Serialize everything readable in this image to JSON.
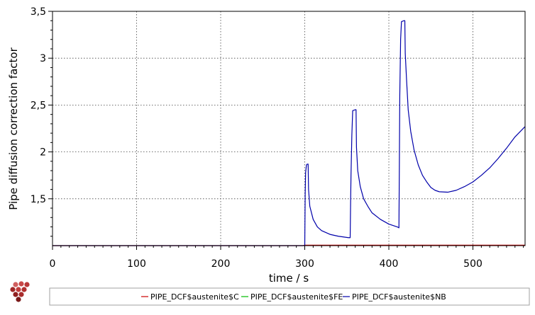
{
  "chart_data": {
    "type": "line",
    "title": "",
    "xlabel": "time / s",
    "ylabel": "Pipe diffusion correction factor",
    "xlim": [
      0,
      562
    ],
    "ylim": [
      1.0,
      3.5
    ],
    "x_ticks": [
      0,
      100,
      200,
      300,
      400,
      500
    ],
    "x_tick_labels": [
      "0",
      "100",
      "200",
      "300",
      "400",
      "500"
    ],
    "y_ticks": [
      1.5,
      2.0,
      2.5,
      3.0,
      3.5
    ],
    "y_tick_labels": [
      "1,5",
      "2",
      "2,5",
      "3",
      "3,5"
    ],
    "grid": true,
    "legend_position": "bottom",
    "series": [
      {
        "name": "PIPE_DCF$austenite$C",
        "color": "#cc0000",
        "points": [
          [
            0,
            1.0
          ],
          [
            298,
            1.0
          ],
          [
            300,
            1.005
          ],
          [
            562,
            1.005
          ]
        ]
      },
      {
        "name": "PIPE_DCF$austenite$FE",
        "color": "#00bb00",
        "points": []
      },
      {
        "name": "PIPE_DCF$austenite$NB",
        "color": "#0000aa",
        "points": [
          [
            0,
            1.0
          ],
          [
            300,
            1.0
          ],
          [
            300.5,
            1.55
          ],
          [
            301,
            1.78
          ],
          [
            302,
            1.86
          ],
          [
            303,
            1.87
          ],
          [
            304,
            1.87
          ],
          [
            304.5,
            1.6
          ],
          [
            306,
            1.42
          ],
          [
            310,
            1.28
          ],
          [
            315,
            1.2
          ],
          [
            320,
            1.16
          ],
          [
            330,
            1.12
          ],
          [
            340,
            1.1
          ],
          [
            352,
            1.085
          ],
          [
            354,
            1.085
          ],
          [
            354.5,
            1.44
          ],
          [
            355,
            1.75
          ],
          [
            356,
            2.18
          ],
          [
            357,
            2.44
          ],
          [
            360,
            2.45
          ],
          [
            361,
            2.45
          ],
          [
            361.5,
            2.05
          ],
          [
            363,
            1.8
          ],
          [
            366,
            1.63
          ],
          [
            370,
            1.5
          ],
          [
            375,
            1.42
          ],
          [
            380,
            1.35
          ],
          [
            390,
            1.28
          ],
          [
            400,
            1.23
          ],
          [
            410,
            1.2
          ],
          [
            412,
            1.19
          ],
          [
            412.5,
            1.85
          ],
          [
            413,
            2.6
          ],
          [
            414,
            3.2
          ],
          [
            415,
            3.39
          ],
          [
            418,
            3.4
          ],
          [
            419,
            3.4
          ],
          [
            419.5,
            3.05
          ],
          [
            421,
            2.78
          ],
          [
            423,
            2.45
          ],
          [
            426,
            2.22
          ],
          [
            430,
            2.02
          ],
          [
            435,
            1.86
          ],
          [
            440,
            1.75
          ],
          [
            445,
            1.68
          ],
          [
            450,
            1.62
          ],
          [
            455,
            1.59
          ],
          [
            460,
            1.575
          ],
          [
            470,
            1.57
          ],
          [
            480,
            1.59
          ],
          [
            490,
            1.63
          ],
          [
            500,
            1.68
          ],
          [
            510,
            1.75
          ],
          [
            520,
            1.83
          ],
          [
            530,
            1.93
          ],
          [
            540,
            2.04
          ],
          [
            550,
            2.16
          ],
          [
            562,
            2.27
          ]
        ]
      }
    ]
  },
  "icons": {
    "logo": "thermo-calc-logo-icon"
  }
}
